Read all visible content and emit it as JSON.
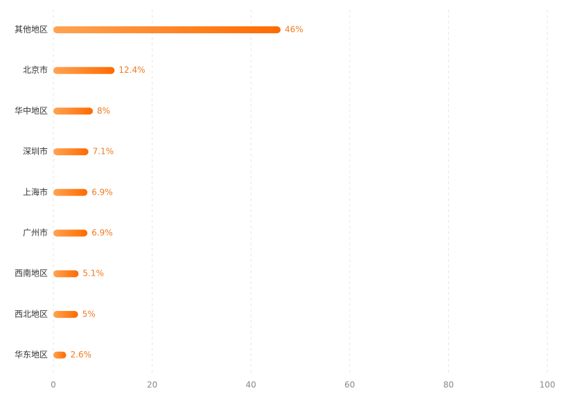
{
  "chart_data": {
    "type": "bar",
    "orientation": "horizontal",
    "categories": [
      "其他地区",
      "北京市",
      "华中地区",
      "深圳市",
      "上海市",
      "广州市",
      "西南地区",
      "西北地区",
      "华东地区"
    ],
    "values": [
      46,
      12.4,
      8,
      7.1,
      6.9,
      6.9,
      5.1,
      5,
      2.6
    ],
    "value_labels": [
      "46%",
      "12.4%",
      "8%",
      "7.1%",
      "6.9%",
      "6.9%",
      "5.1%",
      "5%",
      "2.6%"
    ],
    "colors": [
      "#ffa352",
      "#ff6a00"
    ],
    "xlim": [
      0,
      100
    ],
    "xticks": [
      0,
      20,
      40,
      60,
      80,
      100
    ],
    "grid": true
  }
}
